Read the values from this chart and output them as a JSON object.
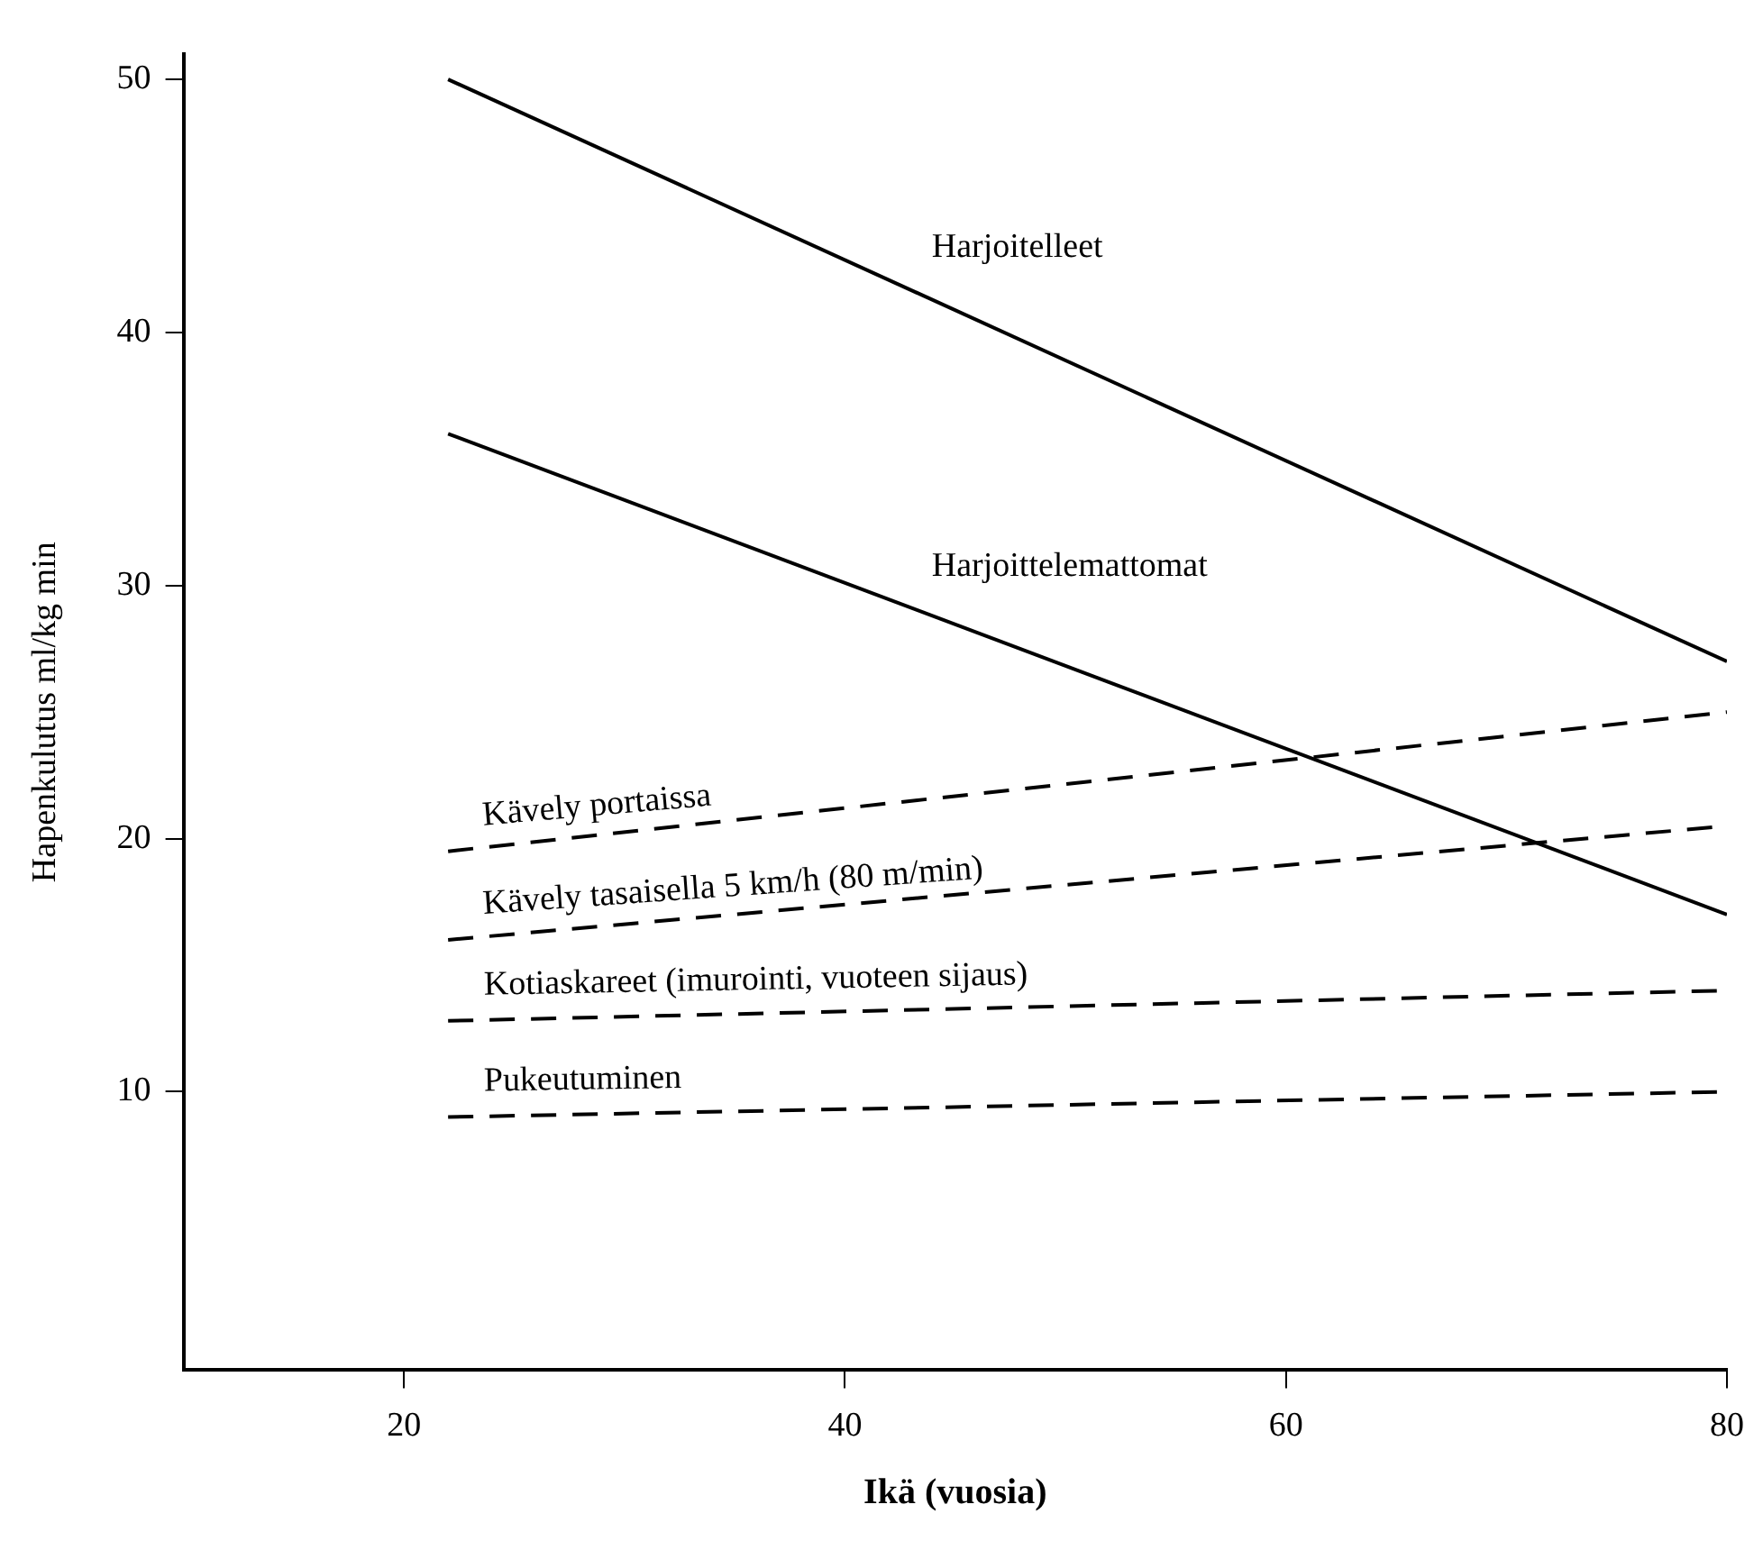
{
  "chart_data": {
    "type": "line",
    "xlabel": "Ikä (vuosia)",
    "ylabel": "Hapenkulutus ml/kg min",
    "xlim": [
      10,
      80
    ],
    "xticks": [
      20,
      40,
      60,
      80
    ],
    "ylim": [
      -1,
      51
    ],
    "yticks": [
      10,
      20,
      30,
      40,
      50
    ],
    "grid": false,
    "legend": false,
    "marker": "none",
    "x": [
      22,
      80
    ],
    "series": [
      {
        "name": "Harjoitelleet",
        "color": "#000000",
        "line_style": "solid",
        "values": [
          50,
          27
        ]
      },
      {
        "name": "Harjoittelemattomat",
        "color": "#000000",
        "line_style": "solid",
        "values": [
          36,
          17
        ]
      },
      {
        "name": "Kävely portaissa",
        "color": "#000000",
        "line_style": "dashed",
        "values": [
          19.5,
          25
        ]
      },
      {
        "name": "Kävely tasaisella 5 km/h (80 m/min)",
        "color": "#000000",
        "line_style": "dashed",
        "values": [
          16,
          20.5
        ]
      },
      {
        "name": "Kotiaskareet (imurointi, vuoteen sijaus)",
        "color": "#000000",
        "line_style": "dashed",
        "values": [
          12.8,
          14
        ]
      },
      {
        "name": "Pukeutuminen",
        "color": "#000000",
        "line_style": "dashed",
        "values": [
          9,
          10
        ]
      }
    ]
  }
}
